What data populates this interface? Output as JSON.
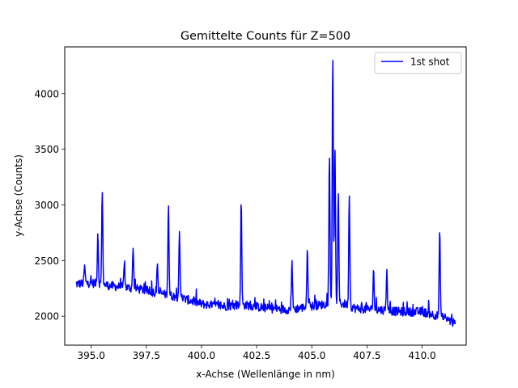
{
  "chart_data": {
    "type": "line",
    "title": "Gemittelte Counts für Z=500",
    "xlabel": "x-Achse (Wellenlänge in nm)",
    "ylabel": "y-Achse (Counts)",
    "xlim": [
      393.8,
      412.0
    ],
    "ylim": [
      1740,
      4420
    ],
    "x_ticks": [
      395.0,
      397.5,
      400.0,
      402.5,
      405.0,
      407.5,
      410.0
    ],
    "x_tick_labels": [
      "395.0",
      "397.5",
      "400.0",
      "402.5",
      "405.0",
      "407.5",
      "410.0"
    ],
    "y_ticks": [
      2000,
      2500,
      3000,
      3500,
      4000
    ],
    "y_tick_labels": [
      "2000",
      "2500",
      "3000",
      "3500",
      "4000"
    ],
    "grid": false,
    "legend_position": "upper right",
    "series": [
      {
        "name": "1st shot",
        "color": "#0000ff",
        "x_range": [
          394.3,
          411.5
        ],
        "sample_points": 900,
        "baseline": [
          [
            394.3,
            2290
          ],
          [
            395.0,
            2300
          ],
          [
            396.0,
            2270
          ],
          [
            397.0,
            2250
          ],
          [
            398.0,
            2210
          ],
          [
            399.0,
            2170
          ],
          [
            400.0,
            2110
          ],
          [
            401.0,
            2090
          ],
          [
            402.0,
            2100
          ],
          [
            403.0,
            2070
          ],
          [
            404.0,
            2060
          ],
          [
            405.0,
            2090
          ],
          [
            406.0,
            2120
          ],
          [
            406.5,
            2110
          ],
          [
            407.0,
            2070
          ],
          [
            408.0,
            2060
          ],
          [
            409.0,
            2040
          ],
          [
            410.0,
            2040
          ],
          [
            411.0,
            1990
          ],
          [
            411.5,
            1930
          ]
        ],
        "peaks": [
          {
            "x": 394.7,
            "y": 2460
          },
          {
            "x": 395.3,
            "y": 2740
          },
          {
            "x": 395.5,
            "y": 3110
          },
          {
            "x": 396.5,
            "y": 2460
          },
          {
            "x": 396.9,
            "y": 2610
          },
          {
            "x": 398.0,
            "y": 2470
          },
          {
            "x": 398.5,
            "y": 2990
          },
          {
            "x": 399.0,
            "y": 2760
          },
          {
            "x": 401.8,
            "y": 3000
          },
          {
            "x": 404.1,
            "y": 2500
          },
          {
            "x": 404.8,
            "y": 2590
          },
          {
            "x": 405.8,
            "y": 3420
          },
          {
            "x": 405.95,
            "y": 4300
          },
          {
            "x": 406.05,
            "y": 3490
          },
          {
            "x": 406.2,
            "y": 3100
          },
          {
            "x": 406.7,
            "y": 3080
          },
          {
            "x": 407.8,
            "y": 2410
          },
          {
            "x": 408.4,
            "y": 2420
          },
          {
            "x": 410.8,
            "y": 2750
          }
        ]
      }
    ]
  }
}
